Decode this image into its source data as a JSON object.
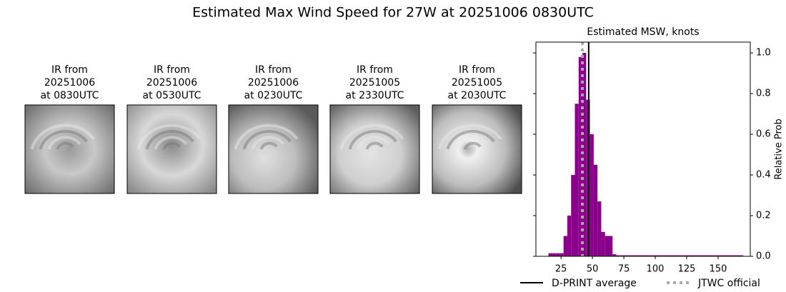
{
  "title": "Estimated Max Wind Speed for 27W at 20251006 0830UTC",
  "panels": [
    {
      "lines": [
        "IR from",
        "20251006",
        "at 0830UTC"
      ]
    },
    {
      "lines": [
        "IR from",
        "20251006",
        "at 0530UTC"
      ]
    },
    {
      "lines": [
        "IR from",
        "20251006",
        "at 0230UTC"
      ]
    },
    {
      "lines": [
        "IR from",
        "20251005",
        "at 2330UTC"
      ]
    },
    {
      "lines": [
        "IR from",
        "20251005",
        "at 2030UTC"
      ]
    }
  ],
  "chart_data": {
    "type": "histogram",
    "title": "Estimated MSW, knots",
    "y_label": "Relative Prob",
    "bins": [
      15,
      18,
      21,
      24,
      27,
      30,
      33,
      36,
      39,
      42,
      45,
      48,
      51,
      54,
      57,
      60,
      63,
      66,
      69,
      170
    ],
    "values": [
      0.015,
      0.015,
      0.015,
      0.015,
      0.1,
      0.2,
      0.4,
      0.75,
      0.98,
      1.0,
      0.77,
      0.6,
      0.45,
      0.27,
      0.12,
      0.1,
      0.1,
      0.01,
      0.005
    ],
    "color": "#8b008b",
    "xlim": [
      5,
      175.6
    ],
    "ylim": [
      0,
      1.053
    ],
    "xticks": [
      25,
      50,
      75,
      100,
      125,
      150
    ],
    "yticks": [
      {
        "value": 0,
        "label": "0.0"
      },
      0.2,
      0.4,
      0.6,
      0.8,
      {
        "value": 1,
        "label": "1.0"
      }
    ],
    "lines": [
      {
        "name": "D-PRINT average",
        "x": 47,
        "color": "#000000",
        "style": "solid"
      },
      {
        "name": "JTWC official",
        "x": 42,
        "color": "#aaaaaa",
        "style": "dotted"
      }
    ]
  }
}
